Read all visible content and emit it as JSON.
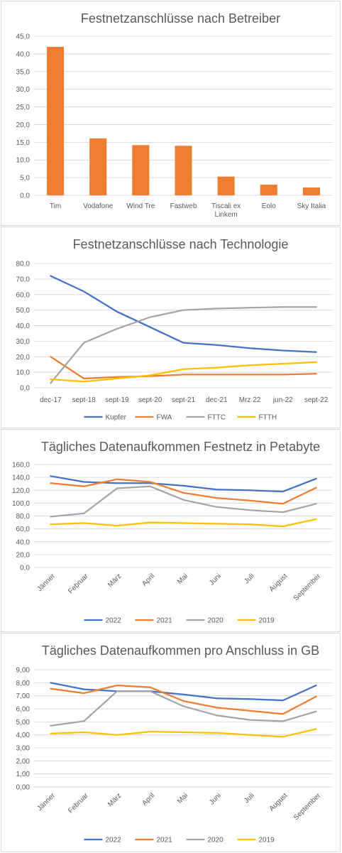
{
  "chart_data": [
    {
      "type": "bar",
      "title": "Festnetzanschlüsse nach Betreiber",
      "categories": [
        "Tim",
        "Vodafone",
        "Wind Tre",
        "Fastweb",
        "Tiscali ex Linkem",
        "Eolo",
        "Sky Italia"
      ],
      "values": [
        42.0,
        16.1,
        14.2,
        14.0,
        5.3,
        3.0,
        2.2
      ],
      "ylim": [
        0,
        45
      ],
      "yticks": [
        "0,0",
        "5,0",
        "10,0",
        "15,0",
        "20,0",
        "25,0",
        "30,0",
        "35,0",
        "40,0",
        "45,0"
      ],
      "color": "#ed7d31",
      "grid": true
    },
    {
      "type": "line",
      "title": "Festnetzanschlüsse nach Technologie",
      "categories": [
        "dec-17",
        "sept-18",
        "sept-19",
        "sept-20",
        "sept-21",
        "dec-21",
        "Mrz 22",
        "jun-22",
        "sept-22"
      ],
      "ylim": [
        0,
        80
      ],
      "yticks": [
        "0,0",
        "10,0",
        "20,0",
        "30,0",
        "40,0",
        "50,0",
        "60,0",
        "70,0",
        "80,0"
      ],
      "legend_position": "bottom",
      "series": [
        {
          "name": "Kupfer",
          "color": "#4472c4",
          "values": [
            72.0,
            62.0,
            49.0,
            39.0,
            29.0,
            27.5,
            25.5,
            24.0,
            23.0
          ]
        },
        {
          "name": "FWA",
          "color": "#ed7d31",
          "values": [
            20.0,
            6.0,
            7.0,
            7.5,
            8.5,
            8.5,
            8.5,
            8.5,
            9.0
          ]
        },
        {
          "name": "FTTC",
          "color": "#a5a5a5",
          "values": [
            3.0,
            29.0,
            38.0,
            45.5,
            50.0,
            51.0,
            51.5,
            52.0,
            52.0
          ]
        },
        {
          "name": "FTTH",
          "color": "#ffc000",
          "values": [
            5.5,
            4.0,
            6.0,
            8.0,
            12.0,
            13.0,
            14.5,
            15.5,
            16.5
          ]
        }
      ]
    },
    {
      "type": "line",
      "title": "Tägliches Datenaufkommen Festnetz in Petabyte",
      "categories": [
        "Jänner",
        "Februar",
        "März",
        "April",
        "Mai",
        "Juni",
        "Juli",
        "August",
        "September"
      ],
      "ylim": [
        0,
        160
      ],
      "yticks": [
        "0,0",
        "20,0",
        "40,0",
        "60,0",
        "80,0",
        "100,0",
        "120,0",
        "140,0",
        "160,0"
      ],
      "legend_position": "bottom",
      "series": [
        {
          "name": "2022",
          "color": "#4472c4",
          "values": [
            142,
            133,
            131,
            131,
            127,
            121,
            120,
            118,
            138
          ]
        },
        {
          "name": "2021",
          "color": "#ed7d31",
          "values": [
            131,
            126,
            137,
            133,
            116,
            108,
            104,
            99,
            124
          ]
        },
        {
          "name": "2020",
          "color": "#a5a5a5",
          "values": [
            79,
            84,
            123,
            126,
            105,
            94,
            89,
            86,
            99
          ]
        },
        {
          "name": "2019",
          "color": "#ffc000",
          "values": [
            67,
            69,
            65,
            70,
            69,
            68,
            67,
            64,
            75
          ]
        }
      ]
    },
    {
      "type": "line",
      "title": "Tägliches Datenaufkommen pro Anschluss in GB",
      "categories": [
        "Jänner",
        "Februar",
        "März",
        "April",
        "Mai",
        "Juni",
        "Juli",
        "August",
        "September"
      ],
      "ylim": [
        0,
        9
      ],
      "yticks": [
        "0,00",
        "1,00",
        "2,00",
        "3,00",
        "4,00",
        "5,00",
        "6,00",
        "7,00",
        "8,00",
        "9,00"
      ],
      "legend_position": "bottom",
      "series": [
        {
          "name": "2022",
          "color": "#4472c4",
          "values": [
            8.0,
            7.5,
            7.35,
            7.35,
            7.1,
            6.8,
            6.75,
            6.65,
            7.8
          ]
        },
        {
          "name": "2021",
          "color": "#ed7d31",
          "values": [
            7.55,
            7.2,
            7.8,
            7.65,
            6.6,
            6.1,
            5.85,
            5.6,
            6.95
          ]
        },
        {
          "name": "2020",
          "color": "#a5a5a5",
          "values": [
            4.7,
            5.05,
            7.35,
            7.35,
            6.2,
            5.5,
            5.15,
            5.05,
            5.8
          ]
        },
        {
          "name": "2019",
          "color": "#ffc000",
          "values": [
            4.1,
            4.2,
            4.0,
            4.25,
            4.2,
            4.15,
            4.0,
            3.85,
            4.45
          ]
        }
      ]
    }
  ]
}
